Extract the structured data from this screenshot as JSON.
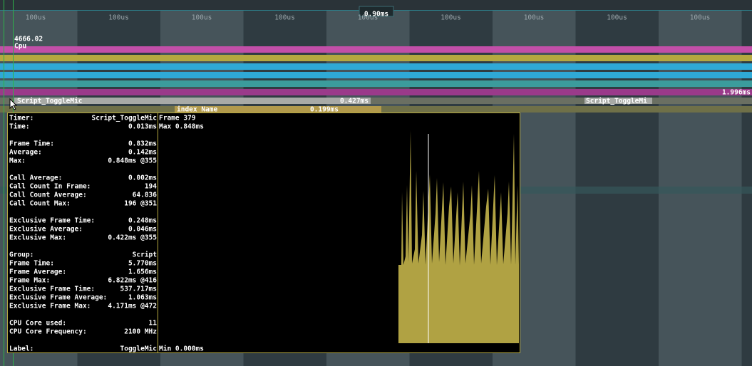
{
  "timeline": {
    "ticks": [
      "100us",
      "100us",
      "100us",
      "100us",
      "100us",
      "100us",
      "100us",
      "100us",
      "100us"
    ],
    "range": "0.90ms"
  },
  "cpu": {
    "value": "4666.02",
    "label": "Cpu",
    "total": "1.996ms"
  },
  "timers": [
    {
      "name": "Script_ToggleMic",
      "time": "0.427ms"
    },
    {
      "name": "Script_ToggleMi"
    }
  ],
  "sub": {
    "name": "index_Name",
    "time": "0.199ms"
  },
  "tooltip": {
    "groups": [
      [
        [
          "Timer:",
          "Script_ToggleMic"
        ],
        [
          "Time:",
          "0.013ms"
        ]
      ],
      [
        [
          "Frame Time:",
          "0.832ms"
        ],
        [
          "Average:",
          "0.142ms"
        ],
        [
          "Max:",
          "0.848ms @355"
        ]
      ],
      [
        [
          "Call Average:",
          "0.002ms"
        ],
        [
          "Call Count In Frame:",
          "194"
        ],
        [
          "Call Count Average:",
          "64.836"
        ],
        [
          "Call Count Max:",
          "196 @351"
        ]
      ],
      [
        [
          "Exclusive Frame Time:",
          "0.248ms"
        ],
        [
          "Exclusive Average:",
          "0.046ms"
        ],
        [
          "Exclusive Max:",
          "0.422ms @355"
        ]
      ],
      [
        [
          "Group:",
          "Script"
        ],
        [
          "Frame Time:",
          "5.770ms"
        ],
        [
          "Frame Average:",
          "1.656ms"
        ],
        [
          "Frame Max:",
          "6.822ms @416"
        ],
        [
          "Exclusive Frame Time:",
          "537.717ms"
        ],
        [
          "Exclusive Frame Average:",
          "1.063ms"
        ],
        [
          "Exclusive Frame Max:",
          "4.171ms @472"
        ]
      ],
      [
        [
          "CPU Core used:",
          "11"
        ],
        [
          "CPU Core Frequency:",
          "2100 MHz"
        ]
      ],
      [
        [
          "Label:",
          "ToggleMic"
        ]
      ]
    ],
    "frame": "Frame 379",
    "max": "Max 0.848ms",
    "min": "Min 0.000ms"
  }
}
